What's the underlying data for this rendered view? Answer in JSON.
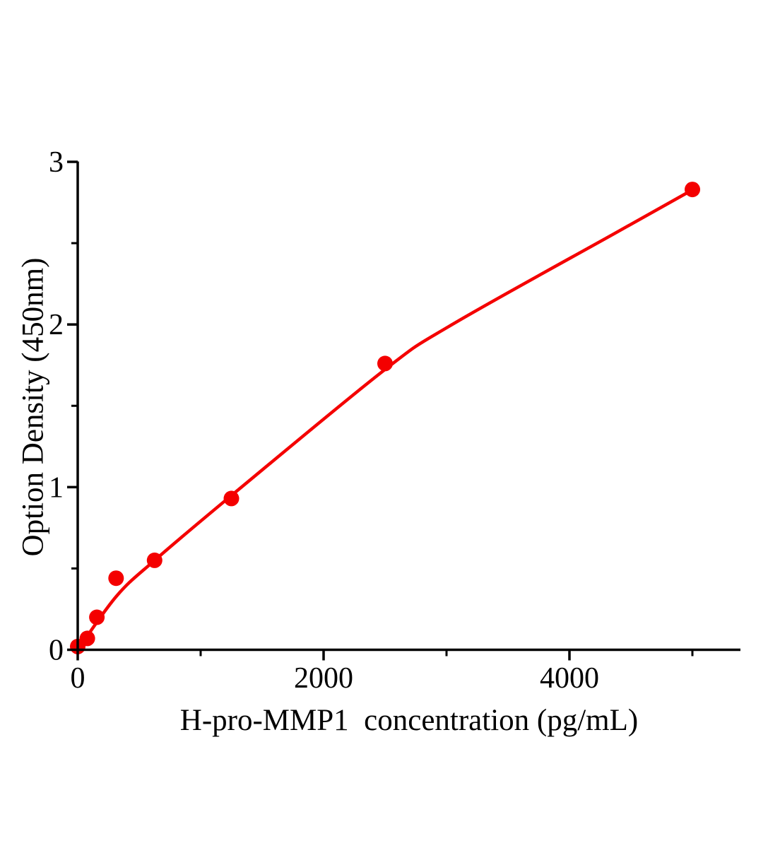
{
  "figure": {
    "background": "#ffffff",
    "accent_red": "#f40000",
    "axis_color": "#000000"
  },
  "chart_data": {
    "type": "scatter",
    "title": "",
    "xlabel": "H-pro-MMP1  concentration (pg/mL)",
    "ylabel": "Option Density (450nm)",
    "xlim": [
      0,
      5390
    ],
    "ylim": [
      0,
      3
    ],
    "x_major_ticks": [
      0,
      2000,
      4000
    ],
    "x_minor_ticks": [
      1000,
      3000,
      5000
    ],
    "x_tick_labels": [
      "0",
      "2000",
      "4000"
    ],
    "y_major_ticks": [
      0,
      1,
      2,
      3
    ],
    "y_minor_ticks": [
      0.5,
      1.5,
      2.5
    ],
    "y_tick_labels": [
      "0",
      "1",
      "2",
      "3"
    ],
    "grid": false,
    "legend": null,
    "series": [
      {
        "name": "standard-points",
        "type": "scatter",
        "color": "#f40000",
        "marker": "circle",
        "x": [
          0,
          78,
          156,
          312,
          625,
          1250,
          2500,
          5000
        ],
        "y": [
          0.02,
          0.07,
          0.2,
          0.44,
          0.55,
          0.93,
          1.76,
          2.83
        ]
      },
      {
        "name": "fit-curve",
        "type": "line",
        "color": "#f40000",
        "x": [
          0,
          316,
          626,
          1253,
          2494,
          3046,
          4368,
          4983
        ],
        "y": [
          0.0,
          0.33,
          0.55,
          0.95,
          1.72,
          2.0,
          2.56,
          2.82
        ]
      }
    ]
  }
}
